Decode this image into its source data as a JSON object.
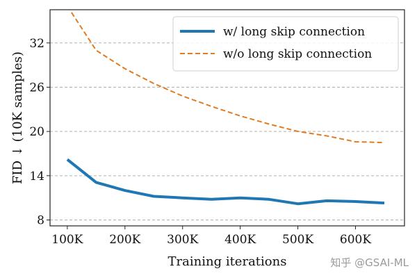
{
  "chart_data": {
    "type": "line",
    "title": "",
    "xlabel": "Training iterations",
    "ylabel": "FID ↓ (10K samples)",
    "x": [
      100000,
      150000,
      200000,
      250000,
      300000,
      350000,
      400000,
      450000,
      500000,
      550000,
      600000,
      650000
    ],
    "xticks": [
      100000,
      200000,
      300000,
      400000,
      500000,
      600000
    ],
    "xtick_labels": [
      "100K",
      "200K",
      "300K",
      "400K",
      "500K",
      "600K"
    ],
    "yticks": [
      8,
      14,
      20,
      26,
      32
    ],
    "ytick_labels": [
      "8",
      "14",
      "20",
      "26",
      "32"
    ],
    "xlim": [
      70000,
      685000
    ],
    "ylim": [
      7.2,
      36.5
    ],
    "grid": "horizontal-dashed",
    "legend_position": "upper-right",
    "series": [
      {
        "name": "w/ long skip connection",
        "color": "#1f77b4",
        "style": "solid",
        "values": [
          16.2,
          13.1,
          12.0,
          11.2,
          11.0,
          10.8,
          11.0,
          10.8,
          10.2,
          10.6,
          10.5,
          10.3
        ]
      },
      {
        "name": "w/o long skip connection",
        "color": "#e07b20",
        "style": "dashed",
        "values": [
          37.0,
          31.0,
          28.5,
          26.5,
          24.8,
          23.4,
          22.1,
          21.0,
          20.0,
          19.4,
          18.6,
          18.5
        ]
      }
    ]
  },
  "watermark": {
    "text": "知乎 @GSAI-ML"
  },
  "colors": {
    "frame": "#222222",
    "grid": "#b0b0b0",
    "legend_border": "#cfcfcf"
  }
}
